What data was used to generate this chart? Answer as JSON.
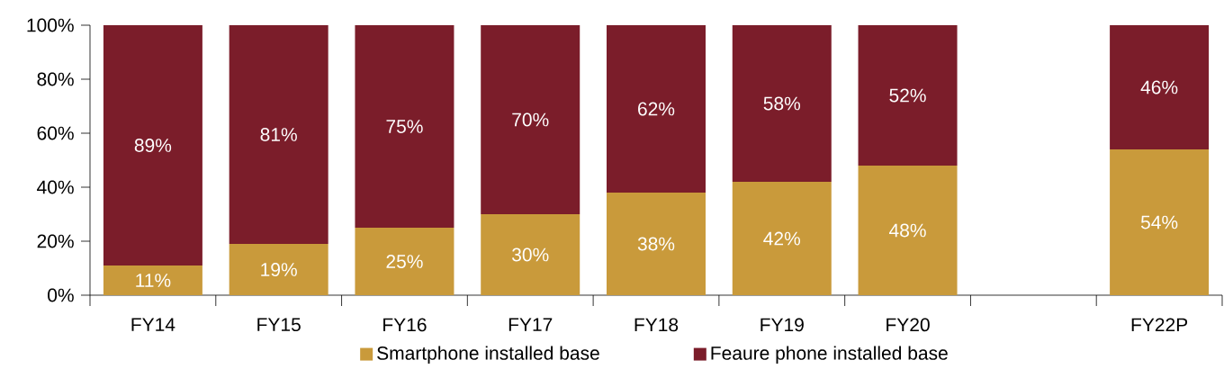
{
  "chart_data": {
    "type": "bar",
    "stacked": true,
    "categories": [
      "FY14",
      "FY15",
      "FY16",
      "FY17",
      "FY18",
      "FY19",
      "FY20",
      null,
      "FY22P"
    ],
    "series": [
      {
        "name": "Smartphone installed base",
        "color": "#c99a3b",
        "values": [
          11,
          19,
          25,
          30,
          38,
          42,
          48,
          null,
          54
        ],
        "value_labels": [
          "11%",
          "19%",
          "25%",
          "30%",
          "38%",
          "42%",
          "48%",
          null,
          "54%"
        ]
      },
      {
        "name": "Feaure phone installed base",
        "color": "#7b1d2a",
        "values": [
          89,
          81,
          75,
          70,
          62,
          58,
          52,
          null,
          46
        ],
        "value_labels": [
          "89%",
          "81%",
          "75%",
          "70%",
          "62%",
          "58%",
          "52%",
          null,
          "46%"
        ]
      }
    ],
    "ylim": [
      0,
      100
    ],
    "yticks": [
      {
        "value": 0,
        "label": "0%"
      },
      {
        "value": 20,
        "label": "20%"
      },
      {
        "value": 40,
        "label": "40%"
      },
      {
        "value": 60,
        "label": "60%"
      },
      {
        "value": 80,
        "label": "80%"
      },
      {
        "value": 100,
        "label": "100%"
      }
    ],
    "grid": false,
    "legend": "bottom"
  }
}
